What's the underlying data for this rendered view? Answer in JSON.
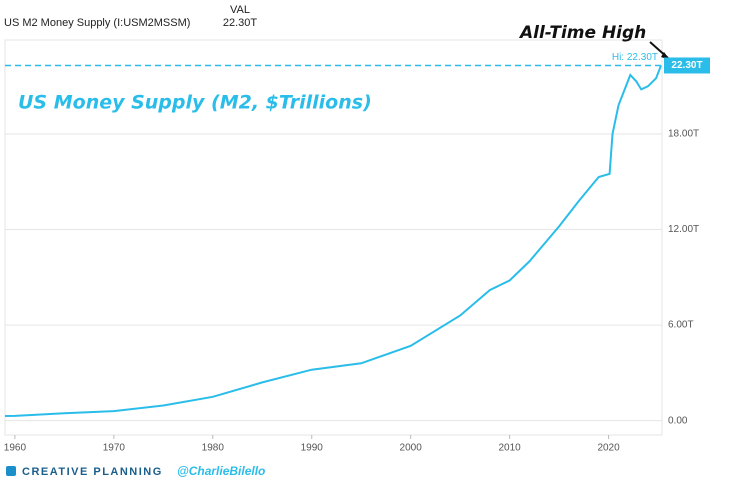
{
  "header": {
    "title": "US M2 Money Supply (I:USM2MSSM)",
    "col_label": "VAL",
    "col_value": "22.30T"
  },
  "chart_data": {
    "type": "line",
    "subtitle": "US Money Supply (M2, $Trillions)",
    "annotation": "All-Time High",
    "x": [
      1959,
      1960,
      1965,
      1970,
      1975,
      1980,
      1985,
      1990,
      1995,
      2000,
      2005,
      2008,
      2010,
      2012,
      2015,
      2017,
      2019,
      2020.1,
      2020.4,
      2021,
      2022.2,
      2022.8,
      2023.3,
      2024,
      2024.8,
      2025.3
    ],
    "series": [
      {
        "name": "US M2 Money Supply",
        "color": "#2bbde9",
        "values": [
          0.29,
          0.3,
          0.46,
          0.6,
          0.95,
          1.5,
          2.4,
          3.2,
          3.6,
          4.7,
          6.6,
          8.2,
          8.8,
          10.0,
          12.2,
          13.8,
          15.3,
          15.5,
          18.0,
          19.8,
          21.7,
          21.3,
          20.8,
          21.0,
          21.5,
          22.3
        ]
      }
    ],
    "high": {
      "value": 22.3,
      "label": "Hi: 22.30T"
    },
    "last_label": "22.30T",
    "xlim": [
      1959,
      2025.4
    ],
    "xticks": [
      1960,
      1970,
      1980,
      1990,
      2000,
      2010,
      2020
    ],
    "ylim": [
      -0.9,
      23.9
    ],
    "yticks": [
      {
        "value": 0,
        "label": "0.00"
      },
      {
        "value": 6,
        "label": "6.00T"
      },
      {
        "value": 12,
        "label": "12.00T"
      },
      {
        "value": 18,
        "label": "18.00T"
      }
    ],
    "grid": true
  },
  "footer": {
    "brand": "CREATIVE PLANNING",
    "handle": "@CharlieBilello"
  }
}
